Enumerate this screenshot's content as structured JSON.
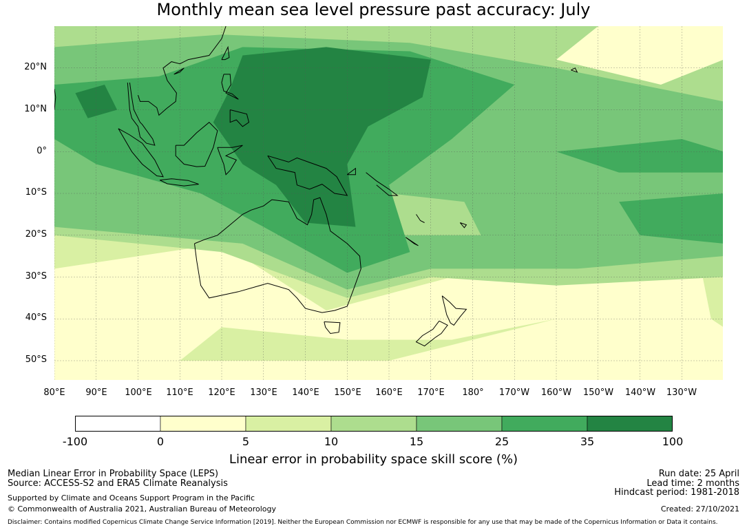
{
  "title": "Monthly mean sea level pressure past accuracy: July",
  "map": {
    "lat_ticks": [
      "20°N",
      "10°N",
      "0°",
      "10°S",
      "20°S",
      "30°S",
      "40°S",
      "50°S"
    ],
    "lon_ticks": [
      "80°E",
      "90°E",
      "100°E",
      "110°E",
      "120°E",
      "130°E",
      "140°E",
      "150°E",
      "160°E",
      "170°E",
      "180°",
      "170°W",
      "160°W",
      "150°W",
      "140°W",
      "130°W"
    ],
    "gridlines": true,
    "colors": {
      "below0": "#ffffff",
      "c0_5": "#ffffcc",
      "c5_10": "#d9f0a3",
      "c10_15": "#addd8e",
      "c15_25": "#78c679",
      "c25_35": "#41ab5d",
      "c35_100": "#238443",
      "coast": "#000000"
    }
  },
  "colorbar": {
    "ticks": [
      "-100",
      "0",
      "5",
      "10",
      "15",
      "25",
      "35",
      "100"
    ],
    "colors": [
      "#ffffff",
      "#ffffcc",
      "#d9f0a3",
      "#addd8e",
      "#78c679",
      "#41ab5d",
      "#238443"
    ],
    "label": "Linear error in probability space skill score (%)"
  },
  "footer": {
    "left_line1": "Median Linear Error in Probability Space (LEPS)",
    "left_line2": "Source: ACCESS-S2 and ERA5 Climate Reanalysis",
    "left_line3": "Supported by Climate and Oceans Support Program in the Pacific",
    "left_line4": "© Commonwealth of Australia 2021, Australian Bureau of Meteorology",
    "right_line1": "Run date: 25 April",
    "right_line2": "Lead time: 2 months",
    "right_line3": "Hindcast period: 1981-2018",
    "right_line4": "Created: 27/10/2021",
    "disclaimer": "Disclaimer: Contains modified Copernicus Climate Change Service Information [2019]. Neither the European Commission nor ECMWF is responsible for any use that may be made of the Copernicus Information or Data it contains."
  }
}
